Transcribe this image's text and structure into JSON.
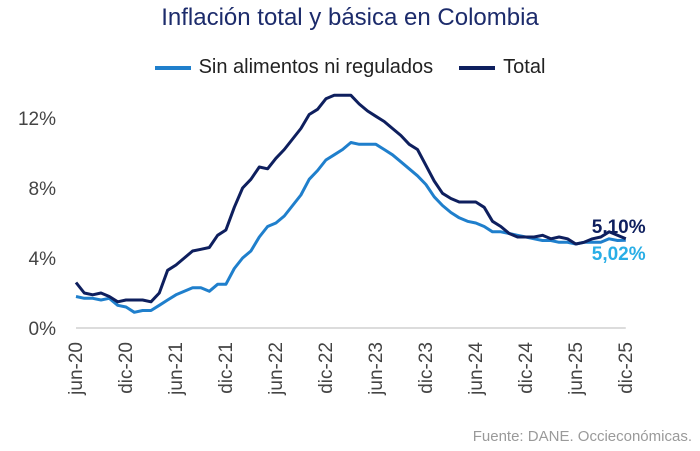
{
  "chart_data": {
    "type": "line",
    "title": "Inflación total y básica en Colombia",
    "xlabel": "",
    "ylabel": "",
    "start_month": "jun-20",
    "x_tick_labels": [
      "jun-20",
      "dic-20",
      "jun-21",
      "dic-21",
      "jun-22",
      "dic-22",
      "jun-23",
      "dic-23",
      "jun-24",
      "dic-24",
      "jun-25",
      "dic-25"
    ],
    "y_tick_labels": [
      "0%",
      "4%",
      "8%",
      "12%"
    ],
    "y_ticks": [
      0,
      4,
      8,
      12
    ],
    "ylim": [
      0,
      14
    ],
    "grid": false,
    "legend_position": "top",
    "series": [
      {
        "name": "Sin alimentos ni regulados",
        "color": "#1f7fcc",
        "end_label": "5,02%",
        "end_label_color": "#29aee6",
        "values": [
          1.8,
          1.7,
          1.7,
          1.6,
          1.7,
          1.3,
          1.2,
          0.9,
          1.0,
          1.0,
          1.3,
          1.6,
          1.9,
          2.1,
          2.3,
          2.3,
          2.1,
          2.5,
          2.5,
          3.4,
          4.0,
          4.4,
          5.2,
          5.8,
          6.0,
          6.4,
          7.0,
          7.6,
          8.5,
          9.0,
          9.6,
          9.9,
          10.2,
          10.6,
          10.5,
          10.5,
          10.5,
          10.2,
          9.9,
          9.5,
          9.1,
          8.7,
          8.2,
          7.5,
          7.0,
          6.6,
          6.3,
          6.1,
          6.0,
          5.8,
          5.5,
          5.5,
          5.4,
          5.3,
          5.2,
          5.1,
          5.0,
          5.0,
          4.9,
          4.9,
          4.8,
          4.9,
          4.9,
          4.9,
          5.1,
          5.0,
          5.02
        ]
      },
      {
        "name": "Total",
        "color": "#0e1f5e",
        "end_label": "5,10%",
        "end_label_color": "#0e1f5e",
        "values": [
          2.6,
          2.0,
          1.9,
          2.0,
          1.8,
          1.5,
          1.6,
          1.6,
          1.6,
          1.5,
          2.0,
          3.3,
          3.6,
          4.0,
          4.4,
          4.5,
          4.6,
          5.3,
          5.6,
          6.9,
          8.0,
          8.5,
          9.2,
          9.1,
          9.7,
          10.2,
          10.8,
          11.4,
          12.2,
          12.5,
          13.1,
          13.3,
          13.3,
          13.3,
          12.8,
          12.4,
          12.1,
          11.8,
          11.4,
          11.0,
          10.5,
          10.2,
          9.3,
          8.4,
          7.7,
          7.4,
          7.2,
          7.2,
          7.2,
          6.9,
          6.1,
          5.8,
          5.4,
          5.2,
          5.2,
          5.2,
          5.3,
          5.1,
          5.2,
          5.1,
          4.8,
          4.9,
          5.1,
          5.2,
          5.5,
          5.3,
          5.1
        ]
      }
    ]
  },
  "source": "Fuente: DANE. Occieconómicas."
}
